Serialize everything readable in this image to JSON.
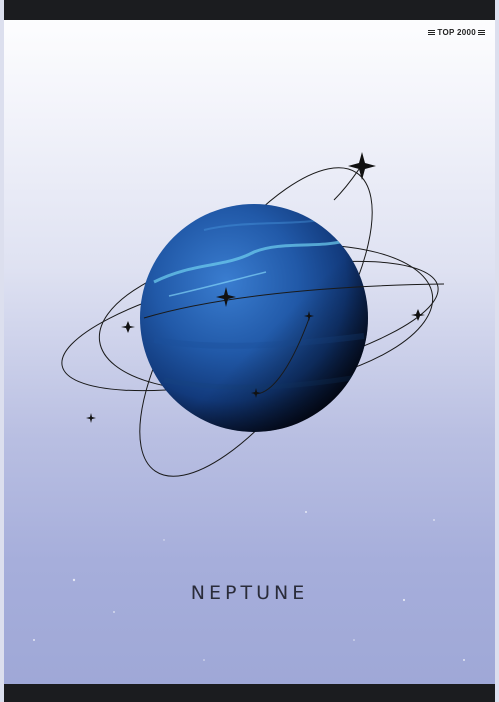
{
  "brand": {
    "label": "TOP 2000",
    "icon": "bars-icon"
  },
  "title": "NEPTUNE",
  "colors": {
    "planet_light": "#2f6fc4",
    "planet_dark": "#0b1e4a",
    "orbit_line": "#1a1a1a",
    "frame": "#1b1c1f"
  }
}
